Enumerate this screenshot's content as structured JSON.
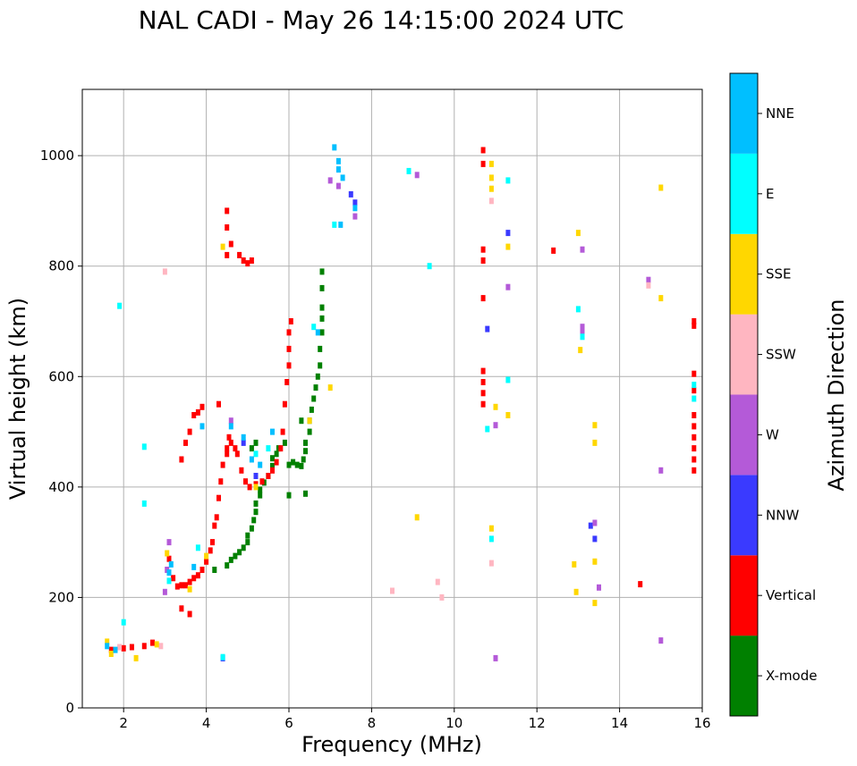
{
  "chart_data": {
    "type": "scatter",
    "title": "NAL CADI - May 26 14:15:00 2024 UTC",
    "xlabel": "Frequency (MHz)",
    "ylabel": "Virtual height (km)",
    "xlim": [
      1,
      16
    ],
    "ylim": [
      0,
      1120
    ],
    "xticks": [
      2,
      4,
      6,
      8,
      10,
      12,
      14,
      16
    ],
    "yticks": [
      0,
      200,
      400,
      600,
      800,
      1000
    ],
    "xtick_labels": [
      "2",
      "4",
      "6",
      "8",
      "10",
      "12",
      "14",
      "16"
    ],
    "ytick_labels": [
      "0",
      "200",
      "400",
      "600",
      "800",
      "1000"
    ],
    "grid": true,
    "colorbar": {
      "label": "Azimuth Direction",
      "categories": [
        {
          "name": "X-mode",
          "color": "#008000"
        },
        {
          "name": "Vertical",
          "color": "#ff0000"
        },
        {
          "name": "NNW",
          "color": "#3a3aff"
        },
        {
          "name": "W",
          "color": "#b45ad8"
        },
        {
          "name": "SSW",
          "color": "#ffb6c1"
        },
        {
          "name": "SSE",
          "color": "#ffd700"
        },
        {
          "name": "E",
          "color": "#00ffff"
        },
        {
          "name": "NNE",
          "color": "#00bfff"
        }
      ]
    },
    "series": [
      {
        "name": "X-mode",
        "points": [
          [
            4.5,
            258
          ],
          [
            4.6,
            268
          ],
          [
            4.7,
            275
          ],
          [
            4.8,
            282
          ],
          [
            4.9,
            290
          ],
          [
            5.0,
            300
          ],
          [
            5.0,
            312
          ],
          [
            5.1,
            325
          ],
          [
            5.15,
            340
          ],
          [
            5.2,
            355
          ],
          [
            5.2,
            370
          ],
          [
            5.3,
            385
          ],
          [
            5.3,
            395
          ],
          [
            5.4,
            408
          ],
          [
            5.5,
            420
          ],
          [
            5.6,
            438
          ],
          [
            5.6,
            452
          ],
          [
            5.7,
            460
          ],
          [
            5.75,
            470
          ],
          [
            5.9,
            480
          ],
          [
            6.0,
            440
          ],
          [
            6.1,
            445
          ],
          [
            6.2,
            440
          ],
          [
            6.3,
            438
          ],
          [
            6.35,
            450
          ],
          [
            6.4,
            465
          ],
          [
            6.4,
            480
          ],
          [
            6.5,
            500
          ],
          [
            6.5,
            520
          ],
          [
            6.55,
            540
          ],
          [
            6.6,
            560
          ],
          [
            6.65,
            580
          ],
          [
            6.7,
            600
          ],
          [
            6.75,
            620
          ],
          [
            6.75,
            650
          ],
          [
            6.8,
            680
          ],
          [
            6.8,
            705
          ],
          [
            6.8,
            725
          ],
          [
            6.8,
            760
          ],
          [
            6.8,
            790
          ],
          [
            6.3,
            520
          ],
          [
            6.4,
            388
          ],
          [
            6.0,
            385
          ],
          [
            5.2,
            480
          ],
          [
            5.1,
            470
          ],
          [
            4.2,
            250
          ]
        ]
      },
      {
        "name": "Vertical",
        "points": [
          [
            1.7,
            105
          ],
          [
            2.0,
            108
          ],
          [
            2.2,
            110
          ],
          [
            2.5,
            112
          ],
          [
            2.7,
            118
          ],
          [
            3.1,
            270
          ],
          [
            3.2,
            235
          ],
          [
            3.3,
            220
          ],
          [
            3.4,
            222
          ],
          [
            3.5,
            222
          ],
          [
            3.6,
            228
          ],
          [
            3.7,
            235
          ],
          [
            3.8,
            240
          ],
          [
            3.9,
            250
          ],
          [
            4.0,
            265
          ],
          [
            4.1,
            285
          ],
          [
            4.15,
            300
          ],
          [
            4.2,
            330
          ],
          [
            4.25,
            345
          ],
          [
            4.3,
            380
          ],
          [
            4.35,
            410
          ],
          [
            4.4,
            440
          ],
          [
            4.5,
            470
          ],
          [
            4.55,
            490
          ],
          [
            4.6,
            480
          ],
          [
            4.7,
            470
          ],
          [
            4.75,
            460
          ],
          [
            4.85,
            430
          ],
          [
            4.95,
            410
          ],
          [
            5.05,
            400
          ],
          [
            5.2,
            405
          ],
          [
            5.35,
            410
          ],
          [
            5.5,
            420
          ],
          [
            5.6,
            430
          ],
          [
            5.7,
            445
          ],
          [
            5.8,
            470
          ],
          [
            5.85,
            500
          ],
          [
            5.9,
            550
          ],
          [
            5.95,
            590
          ],
          [
            6.0,
            620
          ],
          [
            6.0,
            650
          ],
          [
            6.0,
            680
          ],
          [
            6.05,
            700
          ],
          [
            3.7,
            530
          ],
          [
            3.8,
            535
          ],
          [
            3.9,
            545
          ],
          [
            3.6,
            500
          ],
          [
            3.5,
            480
          ],
          [
            3.4,
            450
          ],
          [
            4.5,
            900
          ],
          [
            4.5,
            870
          ],
          [
            4.5,
            820
          ],
          [
            4.6,
            840
          ],
          [
            4.8,
            820
          ],
          [
            4.9,
            810
          ],
          [
            5.0,
            805
          ],
          [
            5.1,
            810
          ],
          [
            3.4,
            180
          ],
          [
            3.6,
            170
          ],
          [
            10.7,
            1010
          ],
          [
            10.7,
            985
          ],
          [
            10.7,
            830
          ],
          [
            10.7,
            810
          ],
          [
            10.7,
            742
          ],
          [
            10.7,
            610
          ],
          [
            10.7,
            590
          ],
          [
            10.7,
            570
          ],
          [
            10.7,
            550
          ],
          [
            12.4,
            828
          ],
          [
            14.5,
            224
          ],
          [
            15.8,
            700
          ],
          [
            15.8,
            692
          ],
          [
            15.8,
            605
          ],
          [
            15.8,
            575
          ],
          [
            15.8,
            530
          ],
          [
            15.8,
            510
          ],
          [
            15.8,
            490
          ],
          [
            15.8,
            470
          ],
          [
            15.8,
            450
          ],
          [
            15.8,
            430
          ],
          [
            4.3,
            550
          ],
          [
            4.5,
            460
          ]
        ]
      },
      {
        "name": "NNW",
        "points": [
          [
            13.4,
            306
          ],
          [
            13.3,
            330
          ],
          [
            11.3,
            860
          ],
          [
            10.8,
            686
          ],
          [
            4.4,
            90
          ],
          [
            7.6,
            915
          ],
          [
            7.5,
            930
          ],
          [
            4.9,
            480
          ],
          [
            5.2,
            420
          ]
        ]
      },
      {
        "name": "W",
        "points": [
          [
            3.0,
            210
          ],
          [
            3.05,
            250
          ],
          [
            3.1,
            300
          ],
          [
            13.5,
            218
          ],
          [
            13.4,
            335
          ],
          [
            13.1,
            680
          ],
          [
            13.1,
            690
          ],
          [
            13.1,
            830
          ],
          [
            15.0,
            122
          ],
          [
            15.0,
            430
          ],
          [
            14.7,
            775
          ],
          [
            11.3,
            762
          ],
          [
            11.0,
            512
          ],
          [
            11.0,
            90
          ],
          [
            9.1,
            965
          ],
          [
            7.6,
            890
          ],
          [
            7.2,
            945
          ],
          [
            7.0,
            955
          ],
          [
            4.6,
            520
          ]
        ]
      },
      {
        "name": "SSW",
        "points": [
          [
            2.9,
            112
          ],
          [
            8.5,
            212
          ],
          [
            9.7,
            200
          ],
          [
            9.6,
            228
          ],
          [
            10.9,
            262
          ],
          [
            10.9,
            918
          ],
          [
            14.7,
            765
          ],
          [
            3.0,
            790
          ],
          [
            1.9,
            110
          ]
        ]
      },
      {
        "name": "SSE",
        "points": [
          [
            1.6,
            120
          ],
          [
            1.7,
            98
          ],
          [
            2.3,
            90
          ],
          [
            2.8,
            115
          ],
          [
            3.05,
            280
          ],
          [
            4.4,
            835
          ],
          [
            9.1,
            345
          ],
          [
            10.9,
            325
          ],
          [
            10.9,
            960
          ],
          [
            10.9,
            940
          ],
          [
            10.9,
            985
          ],
          [
            11.0,
            545
          ],
          [
            11.3,
            530
          ],
          [
            11.3,
            835
          ],
          [
            12.9,
            260
          ],
          [
            12.95,
            210
          ],
          [
            13.0,
            860
          ],
          [
            13.05,
            648
          ],
          [
            13.4,
            512
          ],
          [
            13.4,
            480
          ],
          [
            13.4,
            265
          ],
          [
            13.4,
            190
          ],
          [
            15.0,
            742
          ],
          [
            15.0,
            942
          ],
          [
            6.5,
            520
          ],
          [
            7.0,
            580
          ],
          [
            3.6,
            215
          ],
          [
            4.0,
            275
          ],
          [
            5.2,
            400
          ]
        ]
      },
      {
        "name": "E",
        "points": [
          [
            1.9,
            728
          ],
          [
            2.0,
            155
          ],
          [
            2.5,
            370
          ],
          [
            2.5,
            473
          ],
          [
            3.1,
            230
          ],
          [
            3.8,
            290
          ],
          [
            4.4,
            92
          ],
          [
            8.9,
            972
          ],
          [
            9.4,
            800
          ],
          [
            10.8,
            505
          ],
          [
            10.9,
            306
          ],
          [
            11.3,
            594
          ],
          [
            11.3,
            955
          ],
          [
            13.0,
            722
          ],
          [
            13.1,
            672
          ],
          [
            15.8,
            585
          ],
          [
            15.8,
            560
          ],
          [
            5.5,
            470
          ],
          [
            5.2,
            460
          ],
          [
            7.1,
            875
          ],
          [
            6.6,
            690
          ]
        ]
      },
      {
        "name": "NNE",
        "points": [
          [
            1.6,
            112
          ],
          [
            1.8,
            105
          ],
          [
            3.1,
            245
          ],
          [
            3.15,
            260
          ],
          [
            3.7,
            255
          ],
          [
            3.9,
            510
          ],
          [
            4.6,
            510
          ],
          [
            4.9,
            490
          ],
          [
            5.1,
            450
          ],
          [
            5.3,
            440
          ],
          [
            7.1,
            1015
          ],
          [
            7.2,
            990
          ],
          [
            7.2,
            975
          ],
          [
            7.3,
            960
          ],
          [
            7.25,
            875
          ],
          [
            7.6,
            905
          ],
          [
            6.7,
            680
          ],
          [
            5.6,
            500
          ]
        ]
      }
    ]
  }
}
